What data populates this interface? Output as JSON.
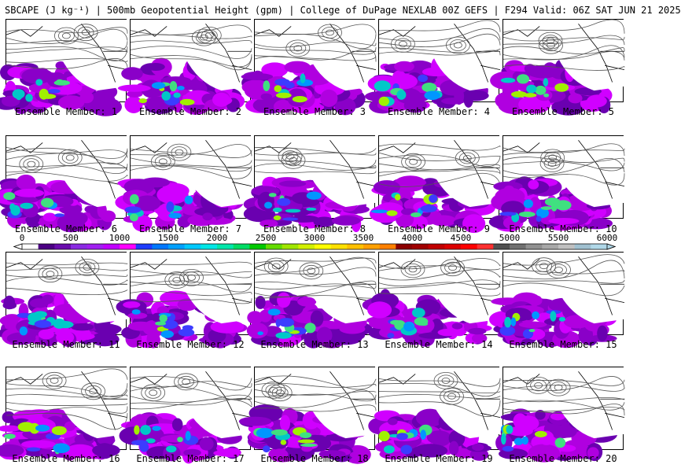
{
  "title": "SBCAPE (J kg⁻¹) | 500mb Geopotential Height (gpm) | College of DuPage NEXLAB 00Z GEFS | F294 Valid: 06Z SAT JUN 21 2025",
  "member_label_prefix": "Ensemble Member: ",
  "members": [
    {
      "id": 1,
      "label": "Ensemble Member: 1"
    },
    {
      "id": 2,
      "label": "Ensemble Member: 2"
    },
    {
      "id": 3,
      "label": "Ensemble Member: 3"
    },
    {
      "id": 4,
      "label": "Ensemble Member: 4"
    },
    {
      "id": 5,
      "label": "Ensemble Member: 5"
    },
    {
      "id": 6,
      "label": "Ensemble Member: 6"
    },
    {
      "id": 7,
      "label": "Ensemble Member: 7"
    },
    {
      "id": 8,
      "label": "Ensemble Member: 8"
    },
    {
      "id": 9,
      "label": "Ensemble Member: 9"
    },
    {
      "id": 10,
      "label": "Ensemble Member: 10"
    },
    {
      "id": 11,
      "label": "Ensemble Member: 11"
    },
    {
      "id": 12,
      "label": "Ensemble Member: 12"
    },
    {
      "id": 13,
      "label": "Ensemble Member: 13"
    },
    {
      "id": 14,
      "label": "Ensemble Member: 14"
    },
    {
      "id": 15,
      "label": "Ensemble Member: 15"
    },
    {
      "id": 16,
      "label": "Ensemble Member: 16"
    },
    {
      "id": 17,
      "label": "Ensemble Member: 17"
    },
    {
      "id": 18,
      "label": "Ensemble Member: 18"
    },
    {
      "id": 19,
      "label": "Ensemble Member: 19"
    },
    {
      "id": 20,
      "label": "Ensemble Member: 20"
    }
  ],
  "colorbar": {
    "ticks": [
      "0",
      "500",
      "1000",
      "1500",
      "2000",
      "2500",
      "3000",
      "3500",
      "4000",
      "4500",
      "5000",
      "5500",
      "6000"
    ],
    "min": 0,
    "max": 6000,
    "colors": [
      "#ffffff",
      "#4b0082",
      "#6a0dad",
      "#8a2be2",
      "#a020f0",
      "#c000ff",
      "#ff00ff",
      "#1e3cff",
      "#0078ff",
      "#00a0ff",
      "#00c8ff",
      "#00e6e6",
      "#00e6aa",
      "#00dc64",
      "#00c800",
      "#64dc00",
      "#a0e600",
      "#d2f000",
      "#ffff00",
      "#ffe000",
      "#ffc000",
      "#ffa000",
      "#ff8000",
      "#8b0000",
      "#a00000",
      "#c00000",
      "#dc0000",
      "#ff0000",
      "#ff3030",
      "#505050",
      "#707070",
      "#909090",
      "#a8a8a8",
      "#c0c0c0",
      "#a0c0d0",
      "#b0d8e8"
    ]
  },
  "cape_colors": [
    "#8a00c8",
    "#b000e0",
    "#d000ff",
    "#6a00b0",
    "#3c3cff",
    "#0096ff",
    "#00c8c8",
    "#40e080",
    "#a0f000"
  ]
}
